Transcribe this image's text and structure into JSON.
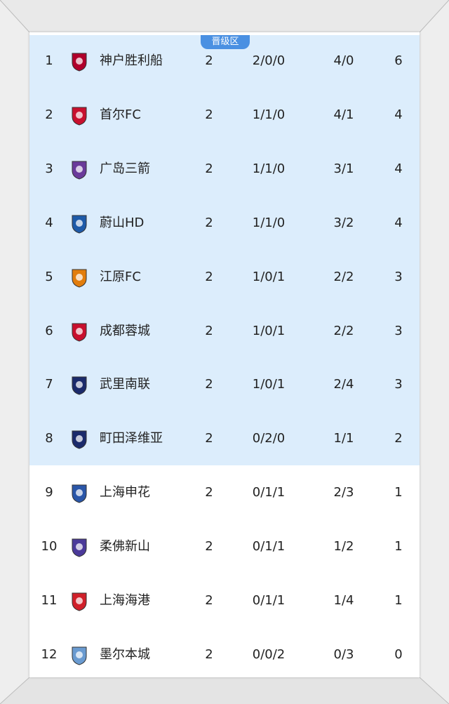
{
  "zone_badge": "晋级区",
  "colors": {
    "promotion_zone": "#dcedfc",
    "badge": "#4a90e2"
  },
  "rows": [
    {
      "rank": "1",
      "team": "神户胜利船",
      "played": "2",
      "wdl": "2/0/0",
      "goals": "4/0",
      "points": "6",
      "logo": "vissel-kobe-crest",
      "logo_color": "#b0002b",
      "promotion": true
    },
    {
      "rank": "2",
      "team": "首尔FC",
      "played": "2",
      "wdl": "1/1/0",
      "goals": "4/1",
      "points": "4",
      "logo": "fc-seoul-crest",
      "logo_color": "#c8102e",
      "promotion": true
    },
    {
      "rank": "3",
      "team": "广岛三箭",
      "played": "2",
      "wdl": "1/1/0",
      "goals": "3/1",
      "points": "4",
      "logo": "sanfrecce-hiroshima-crest",
      "logo_color": "#6a3a9a",
      "promotion": true
    },
    {
      "rank": "4",
      "team": "蔚山HD",
      "played": "2",
      "wdl": "1/1/0",
      "goals": "3/2",
      "points": "4",
      "logo": "ulsan-hd-crest",
      "logo_color": "#1e5aa8",
      "promotion": true
    },
    {
      "rank": "5",
      "team": "江原FC",
      "played": "2",
      "wdl": "1/0/1",
      "goals": "2/2",
      "points": "3",
      "logo": "gangwon-fc-crest",
      "logo_color": "#e27d0c",
      "promotion": true
    },
    {
      "rank": "6",
      "team": "成都蓉城",
      "played": "2",
      "wdl": "1/0/1",
      "goals": "2/2",
      "points": "3",
      "logo": "chengdu-rongcheng-crest",
      "logo_color": "#c8102e",
      "promotion": true
    },
    {
      "rank": "7",
      "team": "武里南联",
      "played": "2",
      "wdl": "1/0/1",
      "goals": "2/4",
      "points": "3",
      "logo": "buriram-united-crest",
      "logo_color": "#1b2a6b",
      "promotion": true
    },
    {
      "rank": "8",
      "team": "町田泽维亚",
      "played": "2",
      "wdl": "0/2/0",
      "goals": "1/1",
      "points": "2",
      "logo": "machida-zelvia-crest",
      "logo_color": "#1b2a6b",
      "promotion": true
    },
    {
      "rank": "9",
      "team": "上海申花",
      "played": "2",
      "wdl": "0/1/1",
      "goals": "2/3",
      "points": "1",
      "logo": "shanghai-shenhua-crest",
      "logo_color": "#2a56a8",
      "promotion": false
    },
    {
      "rank": "10",
      "team": "柔佛新山",
      "played": "2",
      "wdl": "0/1/1",
      "goals": "1/2",
      "points": "1",
      "logo": "johor-darul-tazim-crest",
      "logo_color": "#4b3a9a",
      "promotion": false
    },
    {
      "rank": "11",
      "team": "上海海港",
      "played": "2",
      "wdl": "0/1/1",
      "goals": "1/4",
      "points": "1",
      "logo": "shanghai-port-crest",
      "logo_color": "#d0202a",
      "promotion": false
    },
    {
      "rank": "12",
      "team": "墨尔本城",
      "played": "2",
      "wdl": "0/0/2",
      "goals": "0/3",
      "points": "0",
      "logo": "melbourne-city-crest",
      "logo_color": "#6a9bd1",
      "promotion": false
    }
  ]
}
